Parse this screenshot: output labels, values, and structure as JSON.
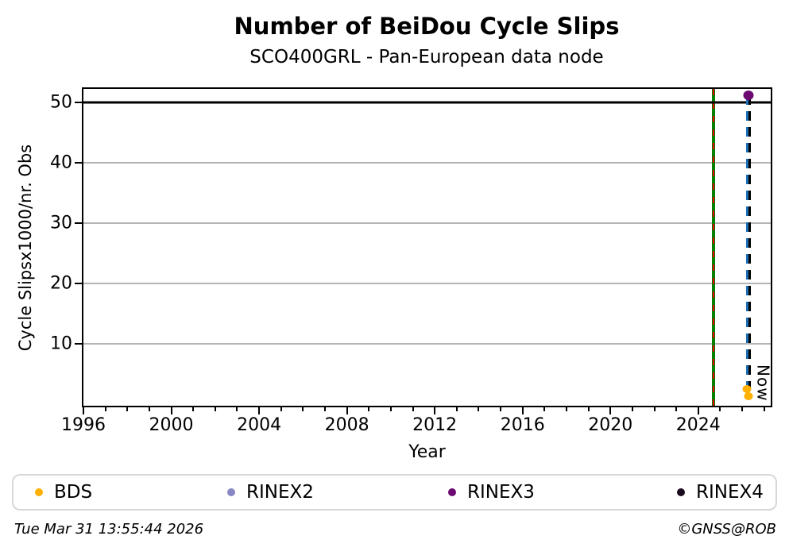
{
  "footer": {
    "timestamp": "Tue Mar 31 13:55:44 2026",
    "credit": "©GNSS@ROB"
  },
  "chart_data": {
    "type": "scatter",
    "title": "Number of BeiDou Cycle Slips",
    "subtitle": "SCO400GRL - Pan-European data node",
    "xlabel": "Year",
    "ylabel": "Cycle Slipsx1000/nr. Obs",
    "xlim": [
      1996,
      2027.3
    ],
    "ylim": [
      -0.2,
      52.3
    ],
    "xticks_major": [
      1996,
      2000,
      2004,
      2008,
      2012,
      2016,
      2020,
      2024
    ],
    "xticks_minor_step": 1,
    "yticks": [
      10,
      20,
      30,
      40,
      50
    ],
    "grid": "horizontal",
    "gridline_color": "#b4b4b4",
    "series": [
      {
        "name": "BDS",
        "color": "#ffb000",
        "marker_px": 11,
        "points": [
          {
            "x": 2026.22,
            "y": 2.6
          },
          {
            "x": 2026.3,
            "y": 1.4
          }
        ]
      },
      {
        "name": "RINEX2",
        "color": "#8787c3",
        "marker_px": 11,
        "points": []
      },
      {
        "name": "RINEX3",
        "color": "#6c0a72",
        "marker_px": 13,
        "points": [
          {
            "x": 2026.3,
            "y": 51.3
          }
        ]
      },
      {
        "name": "RINEX4",
        "color": "#1a0b1e",
        "marker_px": 11,
        "points": []
      }
    ],
    "annotations": {
      "cap_line": {
        "y": 50,
        "color": "#000000"
      },
      "event_line": {
        "x": 2024.7,
        "base_color": "#008000",
        "dash_color": "#e00000"
      },
      "now_line": {
        "x": 2026.3,
        "y_from": 1.4,
        "y_to": 51.3,
        "colors": [
          "#1b6db5",
          "#000000"
        ],
        "label": "Now"
      }
    },
    "legend": {
      "position": "bottom",
      "entries": [
        "BDS",
        "RINEX2",
        "RINEX3",
        "RINEX4"
      ]
    }
  }
}
